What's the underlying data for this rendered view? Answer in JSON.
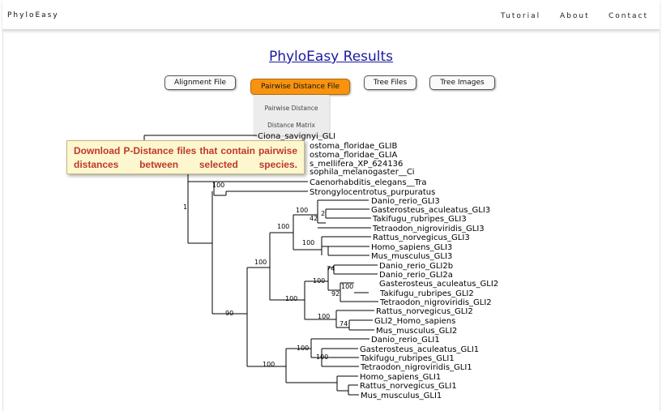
{
  "app": {
    "brand": "PhyloEasy"
  },
  "nav": {
    "tutorial": "Tutorial",
    "about": "About",
    "contact": "Contact"
  },
  "page": {
    "title": "PhyloEasy Results"
  },
  "buttons": {
    "alignment": "Alignment File",
    "pairwise": "Pairwise Distance File",
    "tree_files": "Tree Files",
    "tree_images": "Tree Images"
  },
  "dropdown": {
    "items": [
      "Pairwise Distance",
      "Distance Matrix"
    ]
  },
  "callout": {
    "text": "Download P-Distance files that contain pairwise distances between selected species."
  },
  "colors": {
    "accent": "#f7930e",
    "title_link": "#1a1a9e",
    "callout_text": "#c0392b",
    "callout_bg": "#fdf7cf"
  },
  "tree": {
    "leaves": [
      "Ciona_savignyi_GLI",
      "ostoma_floridae_GLIB",
      "ostoma_floridae_GLIA",
      "s_mellifera_XP_624136",
      "sophila_melanogaster__Ci",
      "Caenorhabditis_elegans__Tra",
      "Strongylocentrotus_purpuratus",
      "Danio_rerio_GLI3",
      "Gasterosteus_aculeatus_GLI3",
      "Takifugu_rubripes_GLI3",
      "Tetraodon_nigroviridis_GLI3",
      "Rattus_norvegicus_GLI3",
      "Homo_sapiens_GLI3",
      "Mus_musculus_GLI3",
      "Danio_rerio_GLI2b",
      "Danio_rerio_GLI2a",
      "Gasterosteus_aculeatus_GLI2",
      "Takifugu_rubripes_GLI2",
      "Tetraodon_nigroviridis_GLI2",
      "Rattus_norvegicus_GLI2",
      "GLI2_Homo_sapiens",
      "Mus_musculus_GLI2",
      "Danio_rerio_GLI1",
      "Gasterosteus_aculeatus_GLI1",
      "Takifugu_rubripes_GLI1",
      "Tetraodon_nigroviridis_GLI1",
      "Homo_sapiens_GLI1",
      "Rattus_norvegicus_GLI1",
      "Mus_musculus_GLI1"
    ],
    "supports": [
      "1",
      "100",
      "100",
      "2",
      "42",
      "100",
      "100",
      "74",
      "100",
      "92",
      "100",
      "100",
      "100",
      "90",
      "100",
      "74",
      "100",
      "100",
      "100"
    ]
  }
}
